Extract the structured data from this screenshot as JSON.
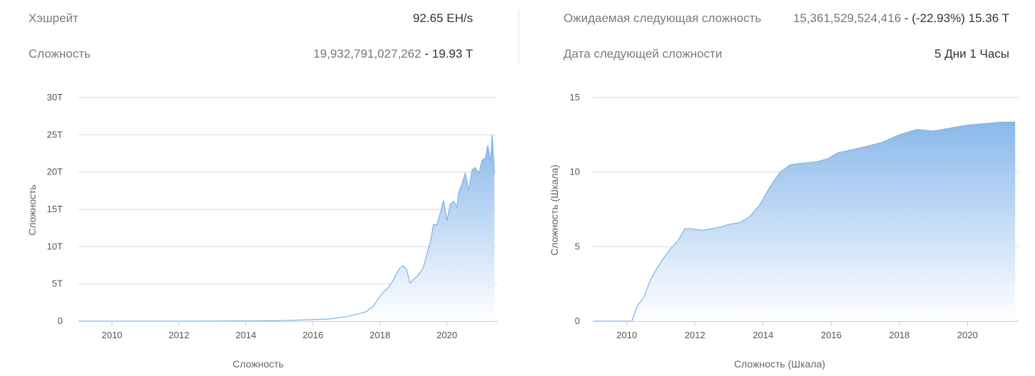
{
  "stats": {
    "hashrate_label": "Хэшрейт",
    "hashrate_value": "92.65 EH/s",
    "difficulty_label": "Сложность",
    "difficulty_value": "19,932,791,027,262",
    "difficulty_value_suffix": " - 19.93 T",
    "next_difficulty_label": "Ожидаемая следующая сложность",
    "next_difficulty_value": "15,361,529,524,416",
    "next_difficulty_value_suffix": " - (-22.93%) 15.36 T",
    "next_date_label": "Дата следующей сложности",
    "next_date_value": "5 Дни 1 Часы"
  },
  "colors": {
    "accent": "#7db3e8",
    "fill_top": "#8ab9ea",
    "fill_bottom": "#ffffff",
    "grid": "#d9d9d9"
  },
  "chart_data": [
    {
      "type": "area",
      "title": "",
      "xlabel": "Сложность",
      "ylabel": "Сложность",
      "ylim": [
        0,
        30
      ],
      "xlim": [
        2009,
        2021.5
      ],
      "y_tick_labels": [
        "0",
        "5T",
        "10T",
        "15T",
        "20T",
        "25T",
        "30T"
      ],
      "x_tick_labels": [
        "2010",
        "2012",
        "2014",
        "2016",
        "2018",
        "2020"
      ],
      "grid": "horizontal",
      "x": [
        2009.0,
        2011.0,
        2013.0,
        2014.0,
        2015.0,
        2016.0,
        2016.5,
        2017.0,
        2017.3,
        2017.6,
        2017.8,
        2017.95,
        2018.1,
        2018.25,
        2018.4,
        2018.5,
        2018.6,
        2018.7,
        2018.8,
        2018.9,
        2019.0,
        2019.1,
        2019.2,
        2019.3,
        2019.4,
        2019.5,
        2019.6,
        2019.7,
        2019.8,
        2019.9,
        2020.0,
        2020.1,
        2020.2,
        2020.3,
        2020.35,
        2020.45,
        2020.55,
        2020.65,
        2020.75,
        2020.85,
        2020.95,
        2021.05,
        2021.15,
        2021.22,
        2021.3,
        2021.35,
        2021.42
      ],
      "y": [
        0.0,
        0.0,
        0.01,
        0.03,
        0.07,
        0.2,
        0.3,
        0.6,
        0.9,
        1.3,
        2.0,
        3.0,
        3.9,
        4.5,
        5.5,
        6.4,
        7.2,
        7.4,
        6.9,
        5.1,
        5.6,
        6.0,
        6.5,
        7.3,
        9.0,
        10.5,
        13.0,
        12.9,
        14.5,
        16.2,
        13.5,
        15.7,
        16.1,
        15.3,
        17.3,
        18.4,
        19.9,
        17.5,
        20.3,
        20.6,
        19.8,
        21.6,
        21.9,
        23.6,
        21.4,
        25.0,
        19.9
      ],
      "series": [
        {
          "values_from": "y"
        }
      ]
    },
    {
      "type": "area",
      "title": "",
      "xlabel": "Сложность (Шкала)",
      "ylabel": "Сложность (Шкала)",
      "ylim": [
        0,
        15
      ],
      "xlim": [
        2009,
        2021.5
      ],
      "y_tick_labels": [
        "0",
        "5",
        "10",
        "15"
      ],
      "x_tick_labels": [
        "2010",
        "2012",
        "2014",
        "2016",
        "2018",
        "2020"
      ],
      "grid": "horizontal",
      "x": [
        2009.0,
        2010.15,
        2010.3,
        2010.5,
        2010.7,
        2010.9,
        2011.1,
        2011.3,
        2011.5,
        2011.7,
        2011.9,
        2012.2,
        2012.5,
        2012.8,
        2013.0,
        2013.3,
        2013.6,
        2013.9,
        2014.2,
        2014.5,
        2014.8,
        2015.2,
        2015.6,
        2015.9,
        2016.2,
        2016.6,
        2017.0,
        2017.5,
        2018.0,
        2018.5,
        2018.8,
        2019.0,
        2019.5,
        2020.0,
        2020.5,
        2021.0,
        2021.4
      ],
      "y": [
        0.0,
        0.0,
        1.0,
        1.6,
        2.8,
        3.6,
        4.3,
        4.9,
        5.4,
        6.2,
        6.2,
        6.1,
        6.2,
        6.35,
        6.5,
        6.6,
        7.0,
        7.8,
        9.0,
        10.0,
        10.5,
        10.6,
        10.7,
        10.9,
        11.3,
        11.5,
        11.7,
        12.0,
        12.5,
        12.85,
        12.8,
        12.75,
        12.95,
        13.15,
        13.25,
        13.35,
        13.35
      ]
    }
  ]
}
